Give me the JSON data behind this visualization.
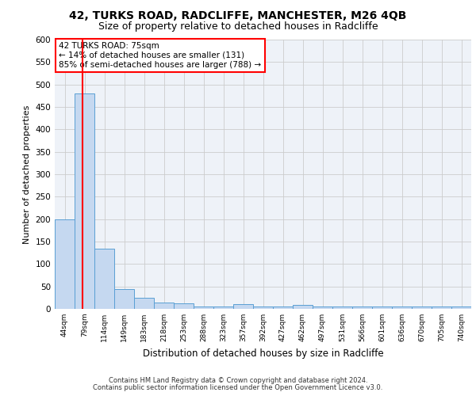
{
  "title": "42, TURKS ROAD, RADCLIFFE, MANCHESTER, M26 4QB",
  "subtitle": "Size of property relative to detached houses in Radcliffe",
  "xlabel": "Distribution of detached houses by size in Radcliffe",
  "ylabel": "Number of detached properties",
  "bin_labels": [
    "44sqm",
    "79sqm",
    "114sqm",
    "149sqm",
    "183sqm",
    "218sqm",
    "253sqm",
    "288sqm",
    "323sqm",
    "357sqm",
    "392sqm",
    "427sqm",
    "462sqm",
    "497sqm",
    "531sqm",
    "566sqm",
    "601sqm",
    "636sqm",
    "670sqm",
    "705sqm",
    "740sqm"
  ],
  "bar_values": [
    200,
    480,
    135,
    45,
    25,
    15,
    12,
    6,
    6,
    10,
    6,
    6,
    8,
    6,
    6,
    5,
    5,
    5,
    5,
    5,
    5
  ],
  "bar_color": "#c5d8f0",
  "bar_edge_color": "#5a9fd4",
  "grid_color": "#cccccc",
  "bg_color": "#eef2f8",
  "property_label": "42 TURKS ROAD: 75sqm",
  "annotation_line1": "← 14% of detached houses are smaller (131)",
  "annotation_line2": "85% of semi-detached houses are larger (788) →",
  "annotation_box_color": "#ff0000",
  "red_line_color": "#ff0000",
  "ylim": [
    0,
    600
  ],
  "yticks": [
    0,
    50,
    100,
    150,
    200,
    250,
    300,
    350,
    400,
    450,
    500,
    550,
    600
  ],
  "footer_line1": "Contains HM Land Registry data © Crown copyright and database right 2024.",
  "footer_line2": "Contains public sector information licensed under the Open Government Licence v3.0.",
  "title_fontsize": 10,
  "subtitle_fontsize": 9
}
